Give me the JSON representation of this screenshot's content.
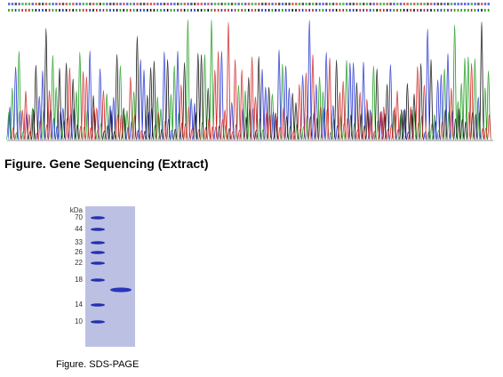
{
  "figures": {
    "sequencing": {
      "caption": "Figure. Gene Sequencing (Extract)"
    },
    "gel": {
      "unit": "kDa",
      "markers": [
        "70",
        "44",
        "33",
        "26",
        "22",
        "18",
        "14",
        "10"
      ],
      "caption": "Figure. SDS-PAGE"
    }
  }
}
